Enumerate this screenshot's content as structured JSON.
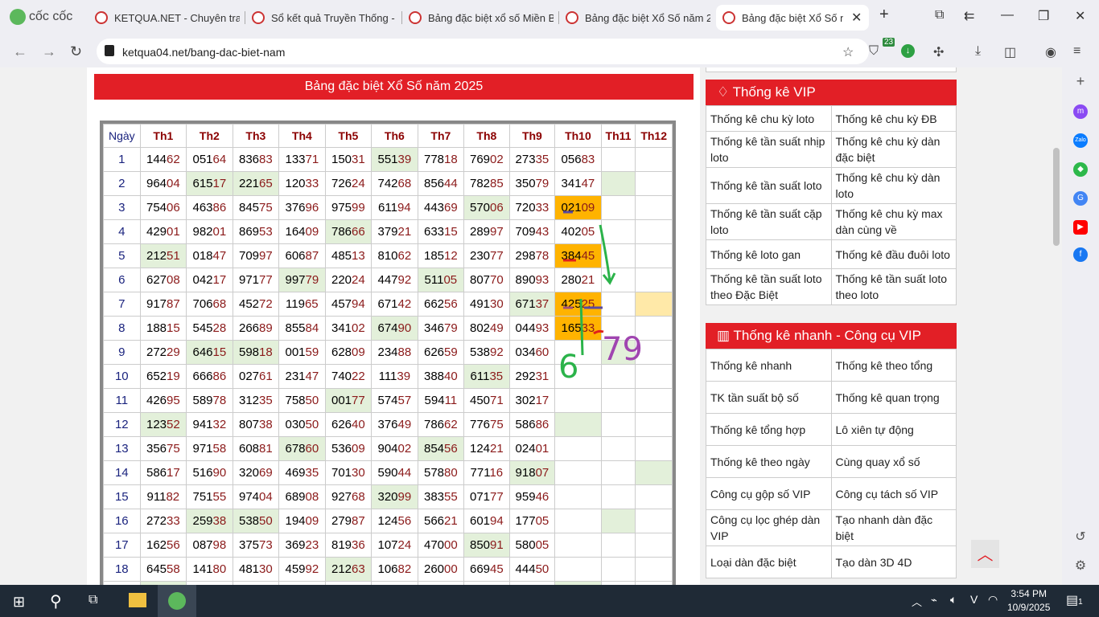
{
  "browser": {
    "brand": "cốc cốc",
    "tabs": [
      {
        "title": "KETQUA.NET - Chuyên trang"
      },
      {
        "title": "Sổ kết quả Truyền Thống -"
      },
      {
        "title": "Bảng đặc biệt xổ số Miền B"
      },
      {
        "title": "Bảng đặc biệt Xổ Số năm 2"
      },
      {
        "title": "Bảng đặc biệt Xổ Số n",
        "active": true
      }
    ],
    "url": "ketqua04.net/bang-dac-biet-nam",
    "extension_badge": "23"
  },
  "page": {
    "title": "Bảng đặc biệt Xổ Số năm 2025",
    "table": {
      "headers": [
        "Ngày",
        "Th1",
        "Th2",
        "Th3",
        "Th4",
        "Th5",
        "Th6",
        "Th7",
        "Th8",
        "Th9",
        "Th10",
        "Th11",
        "Th12"
      ],
      "rows": [
        {
          "day": "1",
          "cells": [
            "14462",
            "05164",
            "83683",
            "13371",
            "15031",
            "55139",
            "77818",
            "76902",
            "27335",
            "05683",
            "",
            ""
          ],
          "hl": [
            "",
            "",
            "",
            "",
            "",
            "g",
            "",
            "",
            "",
            "",
            "",
            ""
          ]
        },
        {
          "day": "2",
          "cells": [
            "96404",
            "61517",
            "22165",
            "12033",
            "72624",
            "74268",
            "85644",
            "78285",
            "35079",
            "34147",
            "",
            ""
          ],
          "hl": [
            "",
            "g",
            "g",
            "",
            "",
            "",
            "",
            "",
            "",
            "",
            "g",
            ""
          ]
        },
        {
          "day": "3",
          "cells": [
            "75406",
            "46386",
            "84575",
            "37696",
            "97599",
            "61194",
            "44369",
            "57006",
            "72033",
            "02109",
            "",
            ""
          ],
          "hl": [
            "",
            "",
            "",
            "",
            "",
            "",
            "",
            "g",
            "",
            "o",
            "",
            ""
          ]
        },
        {
          "day": "4",
          "cells": [
            "42901",
            "98201",
            "86953",
            "16409",
            "78666",
            "37921",
            "63315",
            "28997",
            "70943",
            "40205",
            "",
            ""
          ],
          "hl": [
            "",
            "",
            "",
            "",
            "g",
            "",
            "",
            "",
            "",
            "",
            "",
            ""
          ]
        },
        {
          "day": "5",
          "cells": [
            "21251",
            "01847",
            "70997",
            "60687",
            "48513",
            "81062",
            "18512",
            "23077",
            "29878",
            "38445",
            "",
            ""
          ],
          "hl": [
            "g",
            "",
            "",
            "",
            "",
            "",
            "",
            "",
            "",
            "o",
            "",
            ""
          ]
        },
        {
          "day": "6",
          "cells": [
            "62708",
            "04217",
            "97177",
            "99779",
            "22024",
            "44792",
            "51105",
            "80770",
            "89093",
            "28021",
            "",
            ""
          ],
          "hl": [
            "",
            "",
            "",
            "g",
            "",
            "",
            "g",
            "",
            "",
            "",
            "",
            ""
          ]
        },
        {
          "day": "7",
          "cells": [
            "91787",
            "70668",
            "45272",
            "11965",
            "45794",
            "67142",
            "66256",
            "49130",
            "67137",
            "42525",
            "",
            ""
          ],
          "hl": [
            "",
            "",
            "",
            "",
            "",
            "",
            "",
            "",
            "g",
            "o",
            "",
            "y"
          ]
        },
        {
          "day": "8",
          "cells": [
            "18815",
            "54528",
            "26689",
            "85584",
            "34102",
            "67490",
            "34679",
            "80249",
            "04493",
            "16533",
            "",
            ""
          ],
          "hl": [
            "",
            "",
            "",
            "",
            "",
            "g",
            "",
            "",
            "",
            "o",
            "",
            ""
          ]
        },
        {
          "day": "9",
          "cells": [
            "27229",
            "64615",
            "59818",
            "00159",
            "62809",
            "23488",
            "62659",
            "53892",
            "03460",
            "",
            "",
            ""
          ],
          "hl": [
            "",
            "g",
            "g",
            "",
            "",
            "",
            "",
            "",
            "",
            "",
            "g",
            ""
          ]
        },
        {
          "day": "10",
          "cells": [
            "65219",
            "66686",
            "02761",
            "23147",
            "74022",
            "11139",
            "38840",
            "61135",
            "29231",
            "",
            "",
            ""
          ],
          "hl": [
            "",
            "",
            "",
            "",
            "",
            "",
            "",
            "g",
            "",
            "",
            "",
            ""
          ]
        },
        {
          "day": "11",
          "cells": [
            "42695",
            "58978",
            "31235",
            "75850",
            "00177",
            "57457",
            "59411",
            "45071",
            "30217",
            "",
            "",
            ""
          ],
          "hl": [
            "",
            "",
            "",
            "",
            "g",
            "",
            "",
            "",
            "",
            "",
            "",
            ""
          ]
        },
        {
          "day": "12",
          "cells": [
            "12352",
            "94132",
            "80738",
            "03050",
            "62640",
            "37649",
            "78662",
            "77675",
            "58686",
            "",
            "",
            ""
          ],
          "hl": [
            "g",
            "",
            "",
            "",
            "",
            "",
            "",
            "",
            "",
            "g",
            "",
            ""
          ]
        },
        {
          "day": "13",
          "cells": [
            "35675",
            "97158",
            "60881",
            "67860",
            "53609",
            "90402",
            "85456",
            "12421",
            "02401",
            "",
            "",
            ""
          ],
          "hl": [
            "",
            "",
            "",
            "g",
            "",
            "",
            "g",
            "",
            "",
            "",
            "",
            ""
          ]
        },
        {
          "day": "14",
          "cells": [
            "58617",
            "51690",
            "32069",
            "46935",
            "70130",
            "59044",
            "57880",
            "77116",
            "91807",
            "",
            "",
            ""
          ],
          "hl": [
            "",
            "",
            "",
            "",
            "",
            "",
            "",
            "",
            "g",
            "",
            "",
            "g"
          ]
        },
        {
          "day": "15",
          "cells": [
            "91182",
            "75155",
            "97404",
            "68908",
            "92768",
            "32099",
            "38355",
            "07177",
            "95946",
            "",
            "",
            ""
          ],
          "hl": [
            "",
            "",
            "",
            "",
            "",
            "g",
            "",
            "",
            "",
            "",
            "",
            ""
          ]
        },
        {
          "day": "16",
          "cells": [
            "27233",
            "25938",
            "53850",
            "19409",
            "27987",
            "12456",
            "56621",
            "60194",
            "17705",
            "",
            "",
            ""
          ],
          "hl": [
            "",
            "g",
            "g",
            "",
            "",
            "",
            "",
            "",
            "",
            "",
            "g",
            ""
          ]
        },
        {
          "day": "17",
          "cells": [
            "16256",
            "08798",
            "37573",
            "36923",
            "81936",
            "10724",
            "47000",
            "85091",
            "58005",
            "",
            "",
            ""
          ],
          "hl": [
            "",
            "",
            "",
            "",
            "",
            "",
            "",
            "g",
            "",
            "",
            "",
            ""
          ]
        },
        {
          "day": "18",
          "cells": [
            "64558",
            "14180",
            "48130",
            "45992",
            "21263",
            "10682",
            "26000",
            "66945",
            "44450",
            "",
            "",
            ""
          ],
          "hl": [
            "",
            "",
            "",
            "",
            "g",
            "",
            "",
            "",
            "",
            "",
            "",
            ""
          ]
        }
      ]
    },
    "annotations": [
      "6",
      "79"
    ]
  },
  "sidebar": {
    "vip": {
      "title": "Thống kê VIP",
      "icon": "diamond-icon",
      "links": [
        [
          "Thống kê chu kỳ loto",
          "Thống kê chu kỳ ĐB"
        ],
        [
          "Thống kê tần suất nhịp loto",
          "Thống kê chu kỳ dàn đặc biệt"
        ],
        [
          "Thống kê tần suất loto",
          "Thống kê chu kỳ dàn loto"
        ],
        [
          "Thống kê tần suất cặp loto",
          "Thống kê chu kỳ max dàn cùng về"
        ],
        [
          "Thống kê loto gan",
          "Thống kê đầu đuôi loto"
        ],
        [
          "Thống kê tần suất loto theo Đặc Biệt",
          "Thống kê tần suất loto theo loto"
        ]
      ]
    },
    "quick": {
      "title": "Thống kê nhanh - Công cụ VIP",
      "icon": "bar-chart-icon",
      "links": [
        [
          "Thống kê nhanh",
          "Thống kê theo tổng"
        ],
        [
          "TK tần suất bộ số",
          "Thống kê quan trọng"
        ],
        [
          "Thống kê tổng hợp",
          "Lô xiên tự động"
        ],
        [
          "Thống kê theo ngày",
          "Cùng quay xổ số"
        ],
        [
          "Công cụ gộp số VIP",
          "Công cụ tách số VIP"
        ],
        [
          "Công cụ lọc ghép dàn VIP",
          "Tạo nhanh dàn đặc biệt"
        ],
        [
          "Loại dàn đặc biệt",
          "Tạo dàn 3D 4D"
        ]
      ]
    }
  },
  "colors": {
    "header_red": "#e21f26",
    "highlight_green": "#e3f0da",
    "highlight_orange": "#ffb300",
    "highlight_yellow": "#ffe9a8",
    "tail_digits": "#8b1a1a"
  },
  "taskbar": {
    "time": "3:54 PM",
    "date": "10/9/2025",
    "notifications": "1"
  }
}
